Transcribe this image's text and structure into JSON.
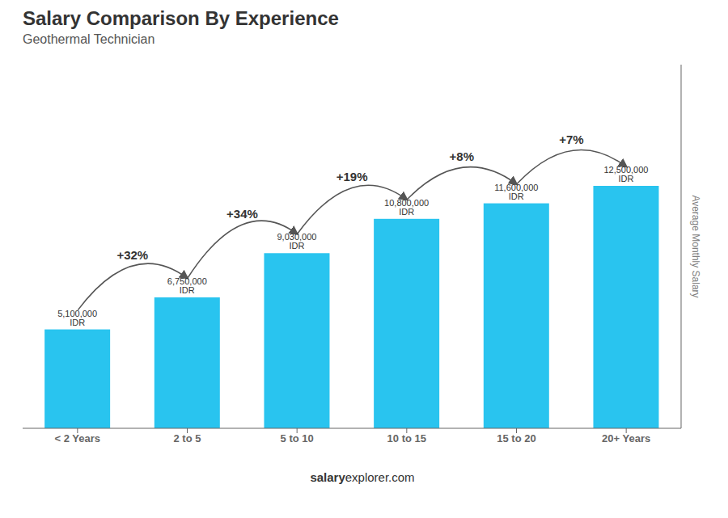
{
  "chart_data": {
    "type": "bar",
    "title": "Salary Comparison By Experience",
    "subtitle": "Geothermal Technician",
    "ylabel": "Average Monthly Salary",
    "categories": [
      "< 2 Years",
      "2 to 5",
      "5 to 10",
      "10 to 15",
      "15 to 20",
      "20+ Years"
    ],
    "values": [
      5100000,
      6750000,
      9030000,
      10800000,
      11600000,
      12500000
    ],
    "value_labels": [
      "5,100,000 IDR",
      "6,750,000 IDR",
      "9,030,000 IDR",
      "10,800,000 IDR",
      "11,600,000 IDR",
      "12,500,000 IDR"
    ],
    "data_labels": true,
    "annotations": [
      "+32%",
      "+34%",
      "+19%",
      "+8%",
      "+7%"
    ],
    "footer": [
      "salary",
      "explorer.com"
    ],
    "color": "#29c4ef",
    "ylim": [
      0,
      18750000
    ],
    "grid": false,
    "tick_labels": "x"
  }
}
